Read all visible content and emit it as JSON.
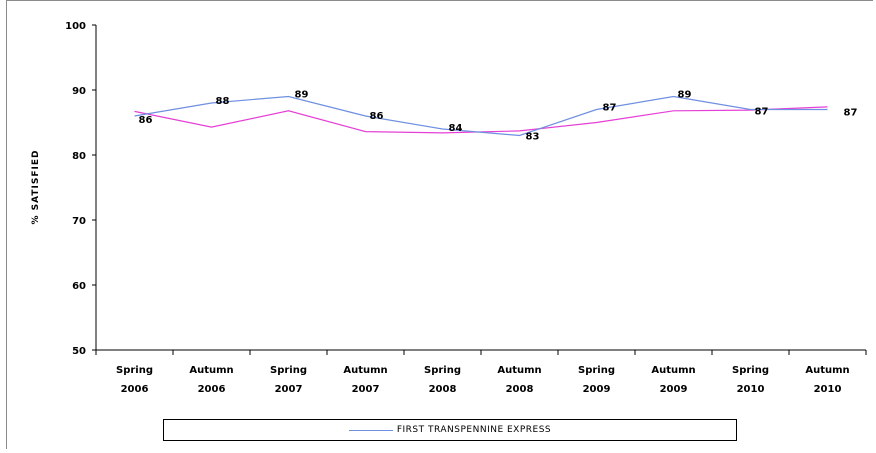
{
  "chart_data": {
    "type": "line",
    "ylabel": "% SATISFIED",
    "ylim": [
      50,
      100
    ],
    "yticks": [
      50,
      60,
      70,
      80,
      90,
      100
    ],
    "categories": [
      [
        "Spring",
        "2006"
      ],
      [
        "Autumn",
        "2006"
      ],
      [
        "Spring",
        "2007"
      ],
      [
        "Autumn",
        "2007"
      ],
      [
        "Spring",
        "2008"
      ],
      [
        "Autumn",
        "2008"
      ],
      [
        "Spring",
        "2009"
      ],
      [
        "Autumn",
        "2009"
      ],
      [
        "Spring",
        "2010"
      ],
      [
        "Autumn",
        "2010"
      ]
    ],
    "series": [
      {
        "name": "FIRST TRANSPENNINE EXPRESS",
        "color": "#6f8fe0",
        "values": [
          86,
          88,
          89,
          86,
          84,
          83,
          87,
          89,
          87,
          87
        ],
        "labels": [
          "86",
          "88",
          "89",
          "86",
          "84",
          "83",
          "87",
          "89",
          "87",
          "87"
        ]
      },
      {
        "color": "#e63fd6",
        "values": [
          86.7,
          84.3,
          86.8,
          83.6,
          83.4,
          83.7,
          85.0,
          86.8,
          86.9,
          87.4
        ]
      }
    ],
    "legend": "bottom",
    "grid": false
  }
}
